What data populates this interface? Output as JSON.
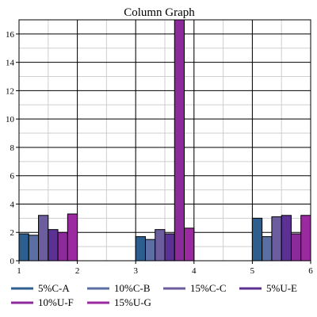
{
  "chart_data": {
    "type": "bar",
    "title": "Column Graph",
    "xlabel": "",
    "ylabel": "",
    "xlim": [
      1,
      6
    ],
    "ylim": [
      0,
      17
    ],
    "x_ticks": [
      1,
      2,
      3,
      4,
      5,
      6
    ],
    "y_ticks": [
      0,
      2,
      4,
      6,
      8,
      10,
      12,
      14,
      16
    ],
    "grid": true,
    "legend_position": "bottom",
    "groups": [
      {
        "start": 1,
        "end": 2
      },
      {
        "start": 3,
        "end": 4
      },
      {
        "start": 5,
        "end": 6
      }
    ],
    "series": [
      {
        "name": "5%C-A",
        "color": "#2c5f8f",
        "values": [
          1.9,
          1.7,
          3.0
        ]
      },
      {
        "name": "10%C-B",
        "color": "#5b6fa5",
        "values": [
          1.8,
          1.5,
          1.7
        ]
      },
      {
        "name": "15%C-C",
        "color": "#6b5d9e",
        "values": [
          3.2,
          2.2,
          3.1
        ]
      },
      {
        "name": "5%U-E",
        "color": "#5b3193",
        "values": [
          2.2,
          1.9,
          3.2
        ]
      },
      {
        "name": "10%U-F",
        "color": "#8c2a9c",
        "values": [
          2.0,
          17.0,
          1.9
        ]
      },
      {
        "name": "15%U-G",
        "color": "#9b2aa0",
        "values": [
          3.3,
          2.3,
          3.2
        ]
      }
    ]
  }
}
